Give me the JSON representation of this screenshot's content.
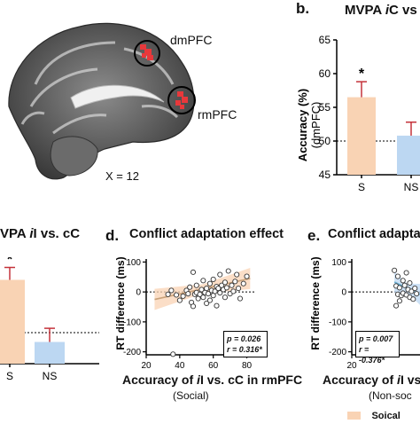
{
  "panel_letters": {
    "b": "b.",
    "d": "d.",
    "e": "e."
  },
  "brain": {
    "roi_labels": [
      "dmPFC",
      "rmPFC"
    ],
    "slice_label": "X = 12",
    "roi_color": "#e8383b"
  },
  "panel_b": {
    "title_prefix": "MVPA ",
    "title_italic": "i",
    "title_rest": "C vs",
    "ylabel_line1": "Accuracy (%)",
    "ylabel_line2": "(dmPFC)",
    "star": "*"
  },
  "panel_left_bottom": {
    "title_prefix": "VPA ",
    "title_italic": "i",
    "title_rest": "I vs. cC",
    "star": "*"
  },
  "panel_d": {
    "title": "Conflict adaptation effect",
    "ylabel": "RT difference (ms)",
    "xlabel_line1_prefix": "Accuracy of ",
    "xlabel_line1_italic": "i",
    "xlabel_line1_rest": "I vs. cC in rmPFC",
    "xlabel_line2": "(Social)",
    "stats_p": "p = 0.026",
    "stats_r": "r = 0.316*"
  },
  "panel_e": {
    "title": "Conflict adaptati",
    "ylabel": "RT difference (ms)",
    "xlabel_line1_prefix": "Accuracy of ",
    "xlabel_line1_italic": "i",
    "xlabel_line1_rest": "I vs.",
    "xlabel_line2": "(Non-soc",
    "stats_p": "p = 0.007",
    "stats_r": "r = -0.376*"
  },
  "legend": {
    "social_label": "Soical"
  },
  "colors": {
    "social": "#f9d3b4",
    "social_line": "#c9a27a",
    "nonsocial": "#bcd7f2",
    "nonsocial_line": "#6aaed0",
    "error_bar": "#c4323a"
  },
  "chart_data": [
    {
      "type": "bar",
      "panel": "b",
      "categories": [
        "S",
        "NS"
      ],
      "values": [
        56.5,
        50.8
      ],
      "errors": [
        2.3,
        2.0
      ],
      "ylabel": "Accuracy (%)\n(dmPFC)",
      "ylim": [
        45,
        65
      ],
      "yticks": [
        45,
        50,
        55,
        60,
        65
      ],
      "chance_line": 50
    },
    {
      "type": "bar",
      "panel": "left-bottom",
      "categories": [
        "S",
        "NS"
      ],
      "values": [
        58.5,
        48.5
      ],
      "errors": [
        2.0,
        2.2
      ],
      "chance_line": 50
    },
    {
      "type": "scatter",
      "panel": "d",
      "title": "Conflict adaptation effect",
      "xlabel": "Accuracy of iI vs. cC in rmPFC (Social)",
      "ylabel": "RT difference (ms)",
      "xlim": [
        20,
        85
      ],
      "ylim": [
        -210,
        110
      ],
      "xticks": [
        20,
        40,
        60,
        80
      ],
      "yticks": [
        -200,
        -100,
        0,
        100
      ],
      "fit": {
        "x0": 25,
        "y0": -25,
        "x1": 82,
        "y1": 45
      },
      "points": [
        [
          33,
          -8
        ],
        [
          35,
          5
        ],
        [
          38,
          -10
        ],
        [
          40,
          -28
        ],
        [
          42,
          -14
        ],
        [
          44,
          5
        ],
        [
          45,
          -6
        ],
        [
          46,
          16
        ],
        [
          47,
          -35
        ],
        [
          48,
          -48
        ],
        [
          49,
          -8
        ],
        [
          50,
          -2
        ],
        [
          50,
          22
        ],
        [
          51,
          -22
        ],
        [
          52,
          -8
        ],
        [
          53,
          8
        ],
        [
          54,
          38
        ],
        [
          54,
          -18
        ],
        [
          55,
          -2
        ],
        [
          56,
          -38
        ],
        [
          56,
          12
        ],
        [
          57,
          -6
        ],
        [
          58,
          28
        ],
        [
          58,
          -28
        ],
        [
          59,
          5
        ],
        [
          60,
          -12
        ],
        [
          60,
          42
        ],
        [
          61,
          2
        ],
        [
          62,
          -46
        ],
        [
          62,
          18
        ],
        [
          63,
          12
        ],
        [
          64,
          -3
        ],
        [
          64,
          58
        ],
        [
          65,
          22
        ],
        [
          66,
          8
        ],
        [
          67,
          -18
        ],
        [
          67,
          32
        ],
        [
          68,
          14
        ],
        [
          69,
          70
        ],
        [
          70,
          -6
        ],
        [
          71,
          22
        ],
        [
          72,
          2
        ],
        [
          73,
          35
        ],
        [
          74,
          58
        ],
        [
          75,
          12
        ],
        [
          76,
          -22
        ],
        [
          78,
          28
        ],
        [
          80,
          52
        ],
        [
          36,
          -208
        ],
        [
          48,
          66
        ]
      ]
    },
    {
      "type": "scatter",
      "panel": "e",
      "title": "Conflict adaptati",
      "ylabel": "RT difference (ms)",
      "xlim": [
        20,
        60
      ],
      "ylim": [
        -210,
        110
      ],
      "xticks": [
        20
      ],
      "yticks": [
        -200,
        -100,
        0,
        100
      ],
      "fit": {
        "x0": 45,
        "y0": 33,
        "x1": 60,
        "y1": -8
      },
      "points": [
        [
          45,
          72
        ],
        [
          46,
          20
        ],
        [
          47,
          -8
        ],
        [
          47,
          52
        ],
        [
          48,
          -30
        ],
        [
          48,
          14
        ],
        [
          49,
          -12
        ],
        [
          50,
          38
        ],
        [
          50,
          -4
        ],
        [
          51,
          22
        ],
        [
          52,
          -10
        ],
        [
          53,
          8
        ],
        [
          54,
          -18
        ],
        [
          54,
          30
        ],
        [
          55,
          2
        ],
        [
          56,
          -24
        ],
        [
          57,
          12
        ],
        [
          58,
          -6
        ],
        [
          46,
          -46
        ],
        [
          52,
          64
        ]
      ]
    }
  ]
}
